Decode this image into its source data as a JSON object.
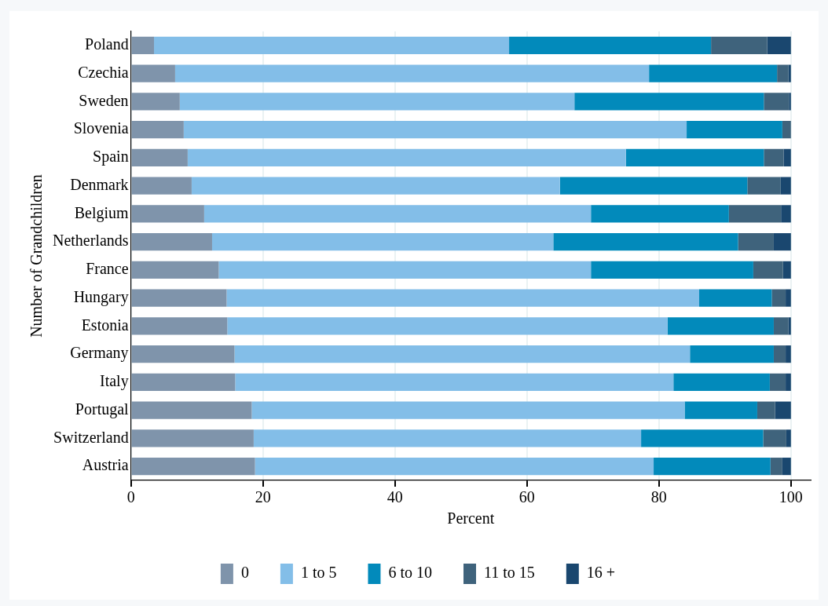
{
  "chart_data": {
    "type": "bar",
    "orientation": "horizontal",
    "stacked": true,
    "xlabel": "Percent",
    "ylabel": "Number of Grandchildren",
    "categories": [
      "Poland",
      "Czechia",
      "Sweden",
      "Slovenia",
      "Spain",
      "Denmark",
      "Belgium",
      "Netherlands",
      "France",
      "Hungary",
      "Estonia",
      "Germany",
      "Italy",
      "Portugal",
      "Switzerland",
      "Austria"
    ],
    "series": [
      {
        "name": "0",
        "color": "#7f94ab",
        "values": [
          3.5,
          6.7,
          7.4,
          8.0,
          8.6,
          9.2,
          11.1,
          12.3,
          13.3,
          14.5,
          14.6,
          15.7,
          15.8,
          18.3,
          18.6,
          18.8
        ]
      },
      {
        "name": "1 to 5",
        "color": "#83bee8",
        "values": [
          53.8,
          71.8,
          59.8,
          76.2,
          66.4,
          55.8,
          58.6,
          51.7,
          56.4,
          71.6,
          66.7,
          69.0,
          66.4,
          65.6,
          58.7,
          60.4
        ]
      },
      {
        "name": "6 to 10",
        "color": "#028abb",
        "values": [
          30.6,
          19.4,
          28.7,
          14.5,
          20.9,
          28.4,
          20.9,
          28.0,
          24.6,
          11.0,
          16.1,
          12.7,
          14.6,
          11.0,
          18.5,
          17.7
        ]
      },
      {
        "name": "11 to 15",
        "color": "#3f637c",
        "values": [
          8.5,
          1.7,
          3.8,
          1.3,
          3.0,
          5.0,
          7.9,
          5.4,
          4.5,
          2.1,
          2.2,
          1.8,
          2.4,
          2.7,
          3.5,
          1.8
        ]
      },
      {
        "name": "16 +",
        "color": "#1a476f",
        "values": [
          3.6,
          0.4,
          0.3,
          0.0,
          1.1,
          1.6,
          1.5,
          2.6,
          1.2,
          0.8,
          0.4,
          0.8,
          0.8,
          2.4,
          0.7,
          1.3
        ]
      }
    ],
    "xlim": [
      0,
      103
    ],
    "xticks": [
      0,
      20,
      40,
      60,
      80,
      100
    ],
    "grid": "x",
    "legend": "bottom"
  }
}
